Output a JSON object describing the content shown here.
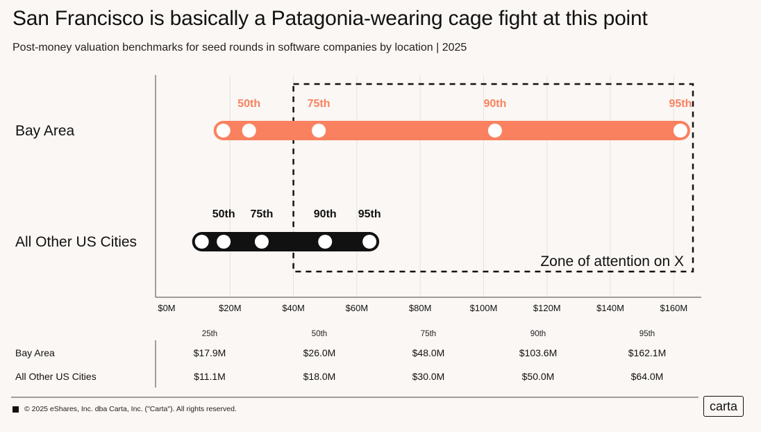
{
  "header": {
    "title": "San Francisco is basically a Patagonia-wearing cage fight at this point",
    "subtitle": "Post-money valuation benchmarks for seed rounds in software companies by location | 2025"
  },
  "chart_data": {
    "type": "dot-range",
    "x_ticks": [
      "$0M",
      "$20M",
      "$40M",
      "$60M",
      "$80M",
      "$100M",
      "$120M",
      "$140M",
      "$160M"
    ],
    "xlim": [
      0,
      170
    ],
    "series": [
      {
        "name": "Bay Area",
        "color": "#fa8160",
        "values": [
          17.9,
          26.0,
          48.0,
          103.6,
          162.1
        ],
        "labels": [
          "",
          "50th",
          "75th",
          "90th",
          "95th"
        ]
      },
      {
        "name": "All Other US Cities",
        "color": "#111111",
        "values": [
          11.1,
          18.0,
          30.0,
          50.0,
          64.0
        ],
        "labels": [
          "",
          "50th",
          "75th",
          "90th",
          "95th"
        ]
      }
    ],
    "annotation": {
      "text": "Zone of attention on X",
      "x_start": 40
    }
  },
  "table": {
    "headers": [
      "25th",
      "50th",
      "75th",
      "90th",
      "95th"
    ],
    "rows": [
      {
        "label": "Bay Area",
        "values": [
          "$17.9M",
          "$26.0M",
          "$48.0M",
          "$103.6M",
          "$162.1M"
        ]
      },
      {
        "label": "All Other US Cities",
        "values": [
          "$11.1M",
          "$18.0M",
          "$30.0M",
          "$50.0M",
          "$64.0M"
        ]
      }
    ]
  },
  "footer": {
    "copyright": "© 2025 eShares, Inc. dba Carta, Inc. (\"Carta\"). All rights reserved.",
    "logo": "carta"
  }
}
